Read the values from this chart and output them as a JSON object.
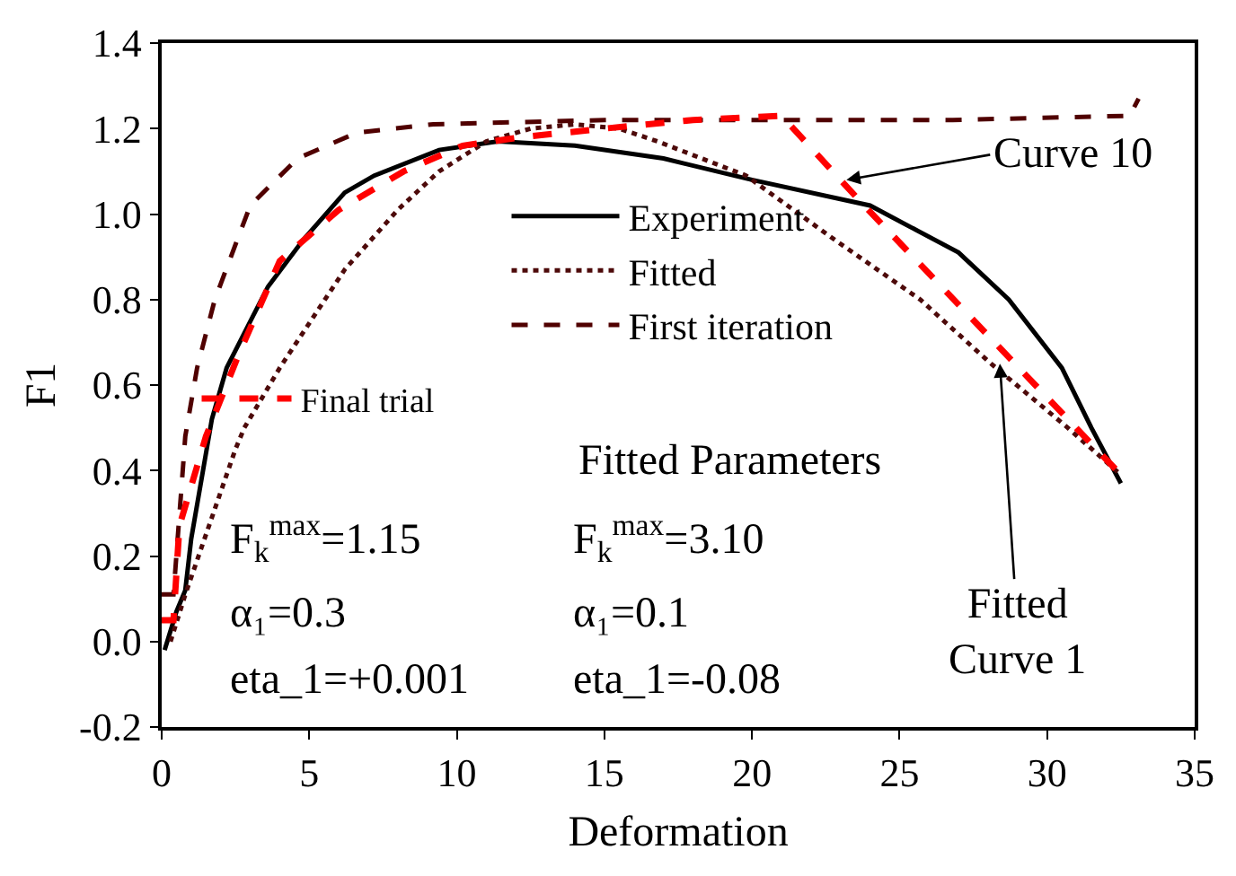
{
  "chart_data": {
    "type": "line",
    "xlabel": "Deformation",
    "ylabel": "F1",
    "xlim": [
      0,
      35
    ],
    "xticks": [
      0,
      5,
      10,
      15,
      20,
      25,
      30,
      35
    ],
    "ylim": [
      -0.2,
      1.4
    ],
    "yticks": [
      {
        "value": -0.2,
        "label": "-0.2"
      },
      {
        "value": 0,
        "label": "0.0"
      },
      0.2,
      0.4,
      0.6,
      0.8,
      {
        "value": 1,
        "label": "1.0"
      },
      1.2,
      1.4
    ],
    "grid": false,
    "legend": "top",
    "marker": "none",
    "series": [
      {
        "name": "Experiment",
        "color": "#000000",
        "line_style": "solid",
        "x": [
          0.1,
          0.5,
          0.8,
          1.0,
          1.7,
          2.2,
          3.6,
          4.8,
          6.2,
          7.2,
          9.4,
          11.4,
          14,
          17,
          20,
          24,
          27,
          28.7,
          30.5,
          31.5,
          32.5
        ],
        "values": [
          -0.02,
          0.07,
          0.12,
          0.24,
          0.52,
          0.64,
          0.83,
          0.94,
          1.05,
          1.09,
          1.15,
          1.17,
          1.16,
          1.13,
          1.08,
          1.02,
          0.91,
          0.8,
          0.64,
          0.5,
          0.37
        ]
      },
      {
        "name": "Fitted",
        "color": "#4d0a0a",
        "line_style": "dotted",
        "x": [
          0.3,
          0.8,
          1.8,
          2.5,
          2.8,
          4.0,
          6.2,
          8,
          9.4,
          11,
          12.5,
          14,
          15.5,
          16.8,
          19.8,
          22.8,
          25.7,
          28.1,
          30.7,
          32.5
        ],
        "values": [
          0,
          0.11,
          0.31,
          0.45,
          0.5,
          0.64,
          0.87,
          1.01,
          1.1,
          1.17,
          1.2,
          1.21,
          1.2,
          1.17,
          1.09,
          0.94,
          0.8,
          0.65,
          0.5,
          0.39
        ]
      },
      {
        "name": "First iteration",
        "color": "#500000",
        "line_style": "dashed",
        "x": [
          0,
          0.4,
          0.8,
          1.2,
          1.8,
          3.0,
          4.6,
          6.6,
          9.2,
          15,
          21,
          26.8,
          32.8,
          33.1
        ],
        "values": [
          0.11,
          0.11,
          0.48,
          0.64,
          0.8,
          1.02,
          1.13,
          1.19,
          1.21,
          1.22,
          1.22,
          1.22,
          1.23,
          1.27
        ]
      },
      {
        "name": "Final trial",
        "color": "#ff0000",
        "line_style": "dashed",
        "x": [
          0,
          0.4,
          0.6,
          1.5,
          2.6,
          4.0,
          6.0,
          8.2,
          10.2,
          12.2,
          15,
          18,
          21,
          23.8,
          32.5
        ],
        "values": [
          0.05,
          0.05,
          0.27,
          0.48,
          0.67,
          0.89,
          1.01,
          1.1,
          1.16,
          1.18,
          1.2,
          1.22,
          1.23,
          1.02,
          0.39
        ]
      }
    ],
    "annotations": [
      {
        "text": "Curve 10",
        "x": 23.2,
        "y": 1.08
      },
      {
        "text": "Fitted\nCurve 1",
        "x": 28.4,
        "y": 0.65
      },
      "Fitted Parameters",
      "F$_{k}$$^{max}$=1.15",
      "α₁=0.3",
      "eta_1=+0.001",
      "F$_{k}$$^{max}$=3.10",
      "α₁=0.1",
      "eta_1=-0.08"
    ]
  }
}
